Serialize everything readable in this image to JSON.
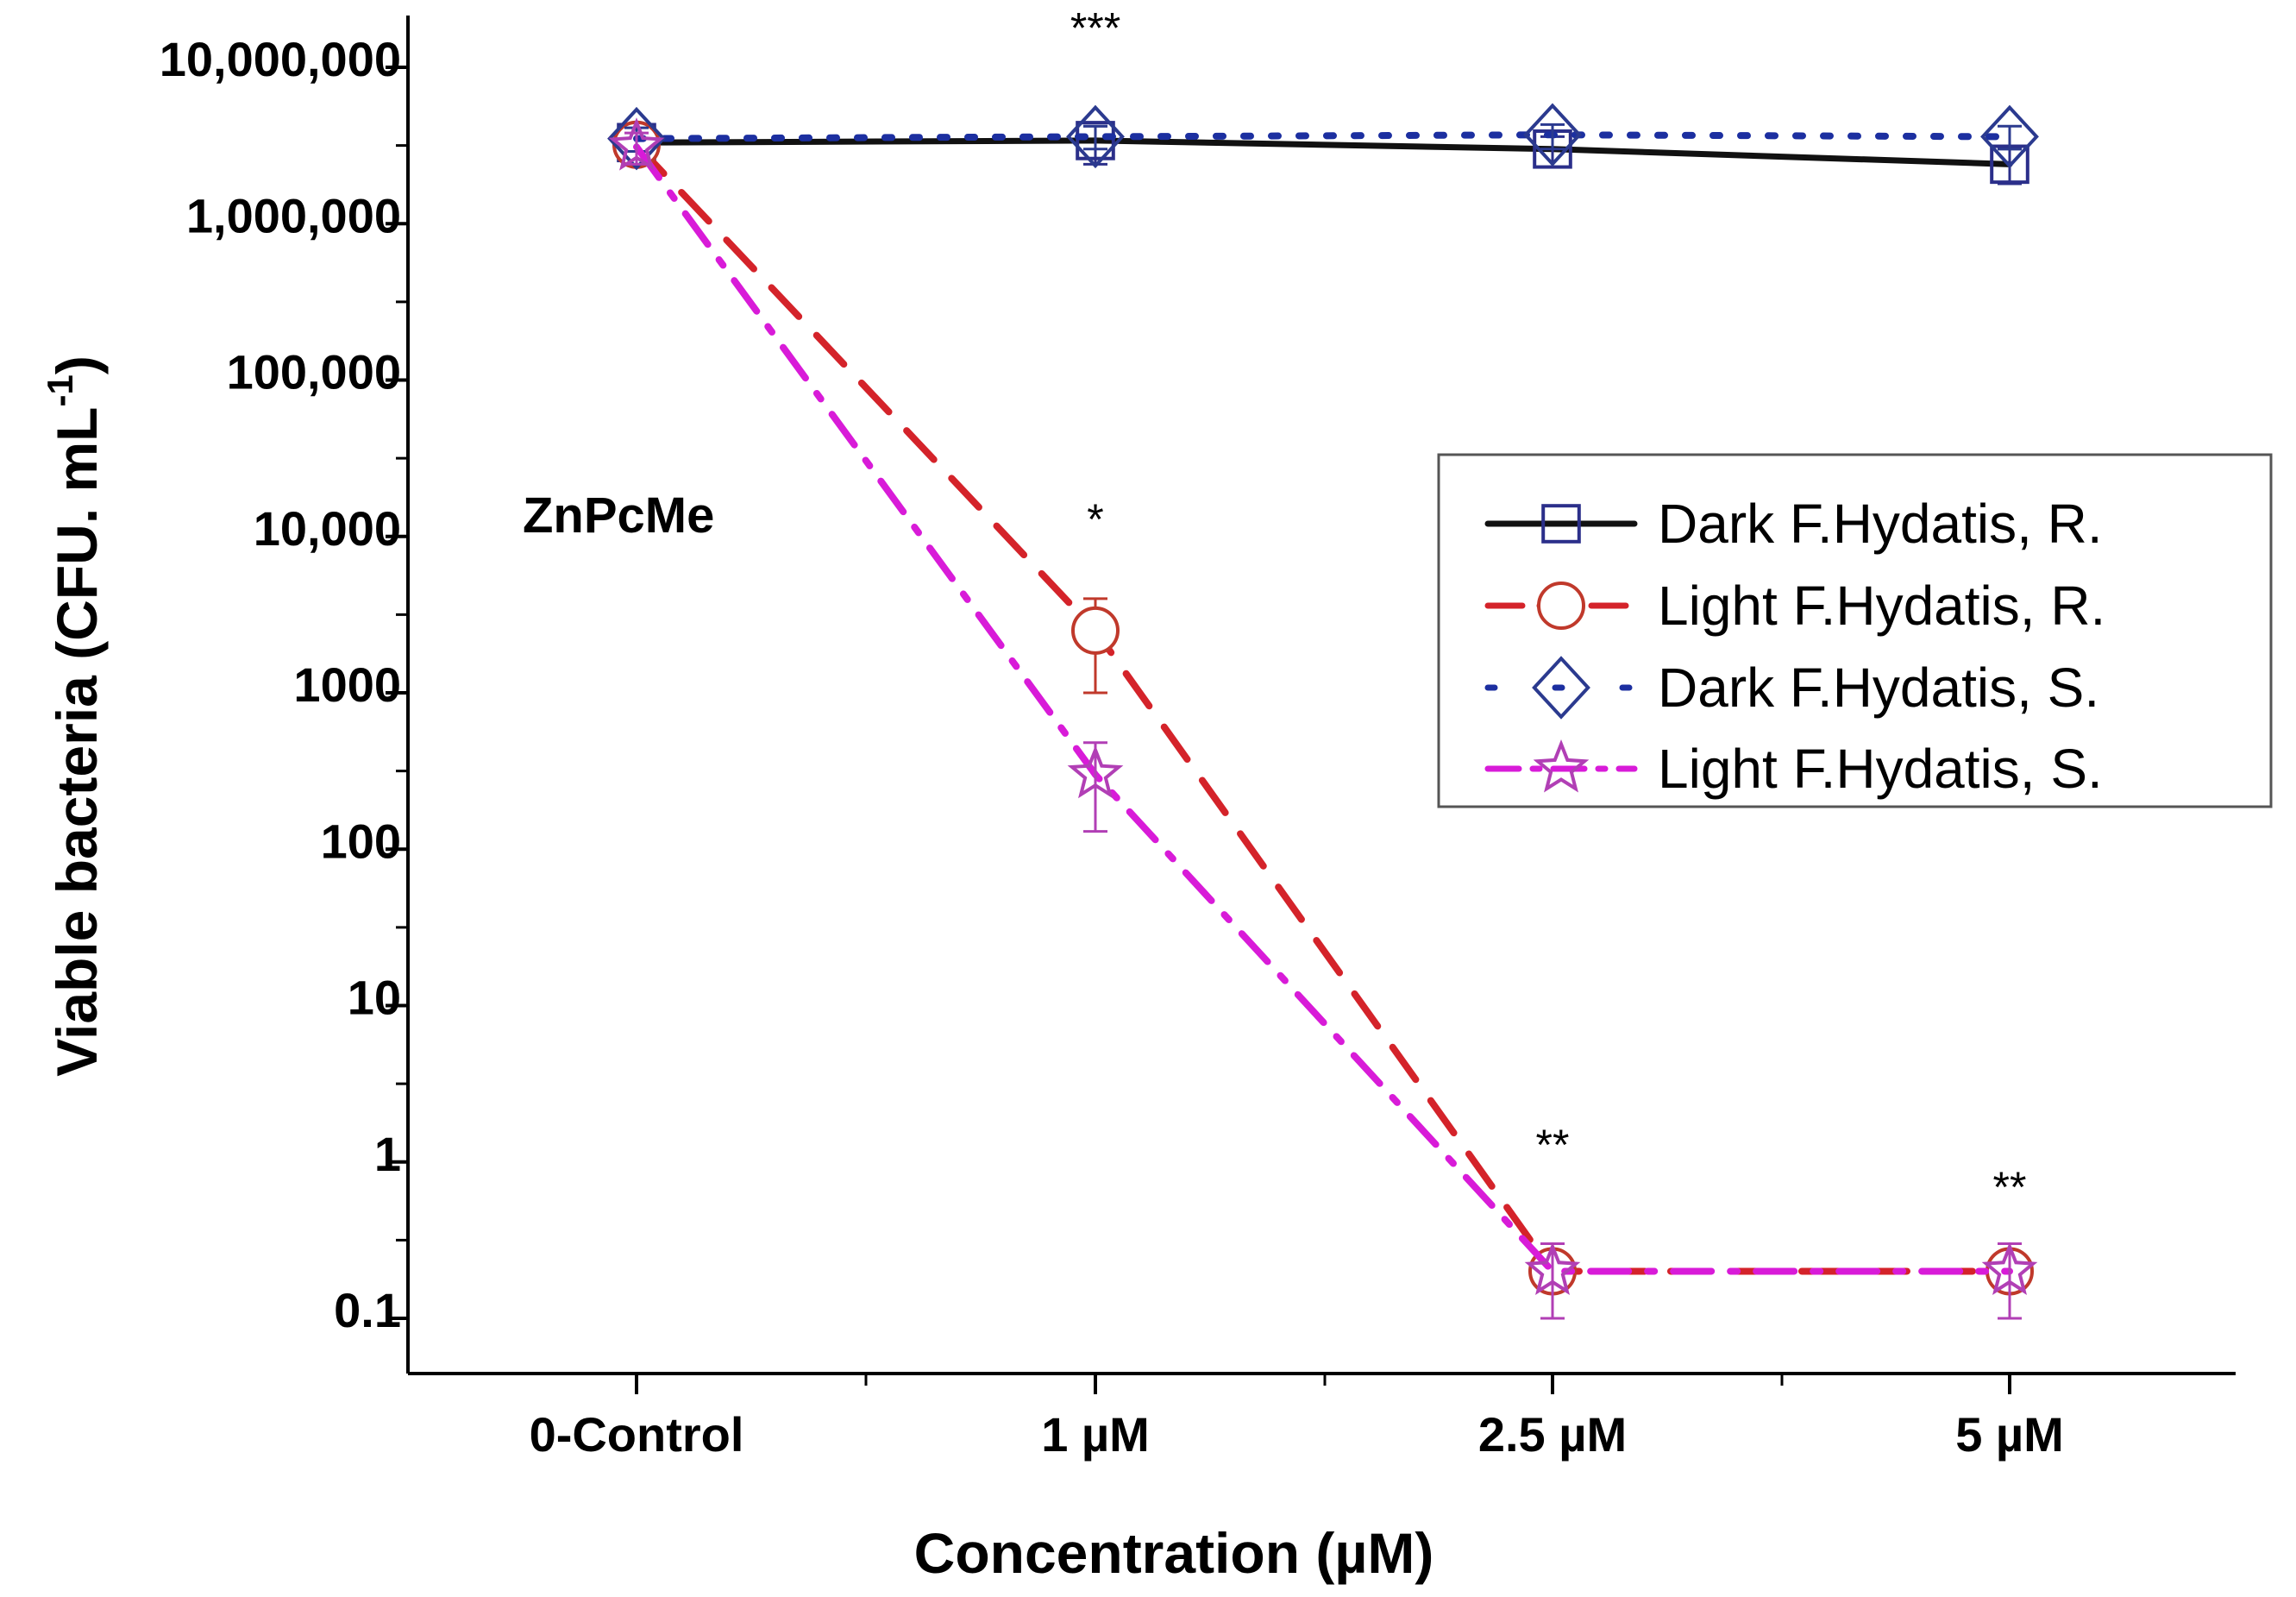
{
  "chart_data": {
    "type": "line",
    "yscale": "log",
    "annotation": "ZnPcMe",
    "xlabel": "Concentration (µM)",
    "ylabel": "Viable bacteria (CFU. mL",
    "ylabel_superscript": "-1",
    "categories": [
      "0-Control",
      "1 µM",
      "2.5 µM",
      "5 µM"
    ],
    "yticks": [
      {
        "value": 10000000,
        "label": "10,000,000"
      },
      {
        "value": 1000000,
        "label": "1,000,000"
      },
      {
        "value": 100000,
        "label": "100,000"
      },
      {
        "value": 10000,
        "label": "10,000"
      },
      {
        "value": 1000,
        "label": "1000"
      },
      {
        "value": 100,
        "label": "100"
      },
      {
        "value": 10,
        "label": "10"
      },
      {
        "value": 1,
        "label": "1"
      },
      {
        "value": 0.1,
        "label": "0.1"
      }
    ],
    "ylim": [
      0.03,
      20000000
    ],
    "series": [
      {
        "name": "Dark F.Hydatis, R.",
        "marker": "square",
        "line": "solid",
        "color": "#111111",
        "marker_color": "#2b2f8a",
        "values": [
          3300000,
          3400000,
          3000000,
          2400000
        ],
        "err_low": [
          2700000,
          2400000,
          2300000,
          1800000
        ],
        "err_high": [
          3900000,
          4200000,
          3600000,
          3000000
        ]
      },
      {
        "name": "Light F.Hydatis, R.",
        "marker": "circle",
        "line": "dash",
        "color": "#d4232a",
        "marker_color": "#c0392b",
        "values": [
          3200000,
          2500,
          0.2,
          0.2
        ],
        "err_low": [
          2500000,
          1000,
          0.1,
          0.1
        ],
        "err_high": [
          4000000,
          4000,
          0.3,
          0.3
        ]
      },
      {
        "name": "Dark F.Hydatis, S.",
        "marker": "diamond",
        "line": "dot",
        "color": "#1c2fa0",
        "marker_color": "#2b3a8f",
        "values": [
          3500000,
          3600000,
          3700000,
          3600000
        ],
        "err_low": [
          2900000,
          3000000,
          3000000,
          3000000
        ],
        "err_high": [
          4100000,
          4200000,
          4300000,
          4200000
        ]
      },
      {
        "name": "Light F.Hydatis, S.",
        "marker": "star",
        "line": "dashdot",
        "color": "#d81bd8",
        "marker_color": "#b13fb5",
        "values": [
          3100000,
          300,
          0.2,
          0.2
        ],
        "err_low": [
          2400000,
          130,
          0.1,
          0.1
        ],
        "err_high": [
          3800000,
          480,
          0.3,
          0.3
        ]
      }
    ],
    "significance": [
      {
        "category": "1 µM",
        "value": 18000000,
        "label": "***"
      },
      {
        "category": "1 µM",
        "value": 13000,
        "label": "*"
      },
      {
        "category": "2.5 µM",
        "value": 1.3,
        "label": "**"
      },
      {
        "category": "5 µM",
        "value": 0.7,
        "label": "**"
      }
    ],
    "legend_position": "right"
  }
}
